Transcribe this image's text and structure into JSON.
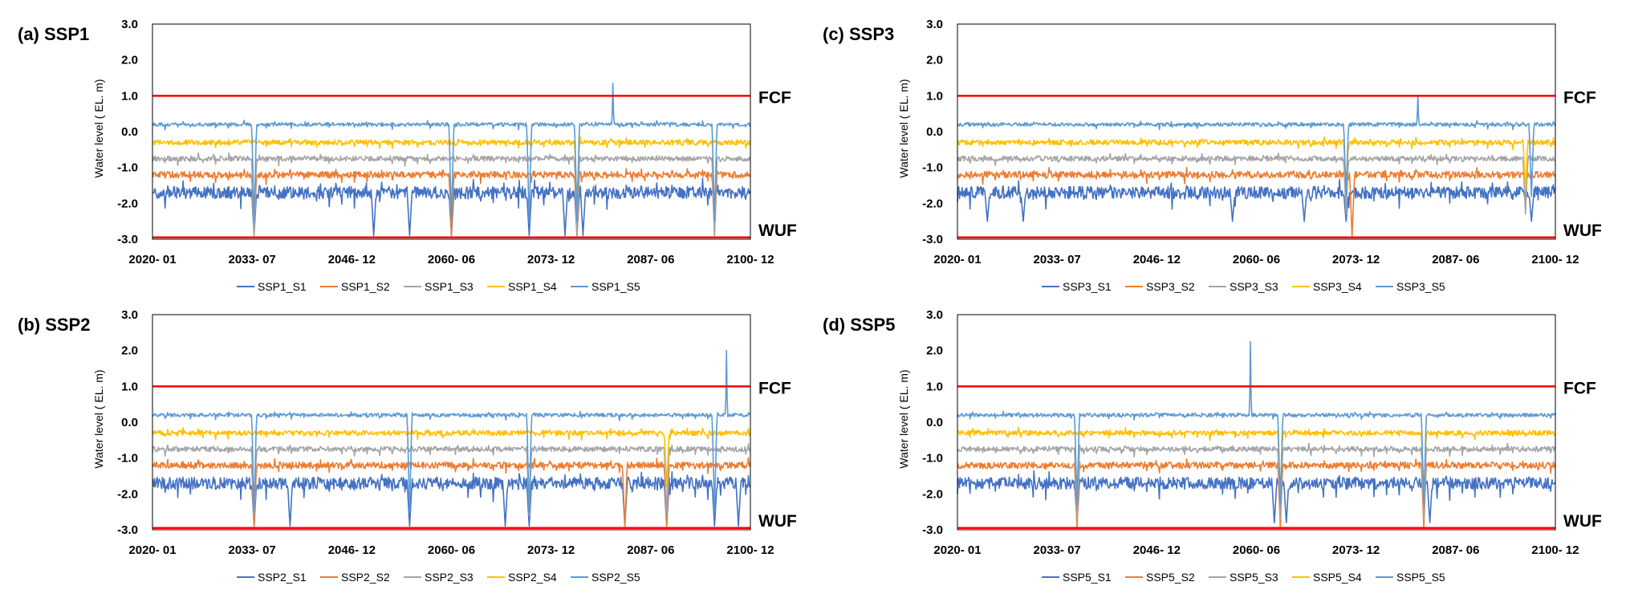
{
  "figure": {
    "ylabel": "Water level ( EL. m)",
    "ref_lines": [
      {
        "label": "FCF",
        "value": 1.0,
        "color": "#FF0000"
      },
      {
        "label": "WUF",
        "value": -2.95,
        "color": "#FF0000"
      }
    ],
    "ylim": [
      -3.0,
      3.0
    ],
    "yticks": [
      "3.0",
      "2.0",
      "1.0",
      "0.0",
      "-1.0",
      "-2.0",
      "-3.0"
    ],
    "xticks": [
      "2020- 01",
      "2033- 07",
      "2046- 12",
      "2060- 06",
      "2073- 12",
      "2087- 06",
      "2100- 12"
    ],
    "series_colors": [
      "#4472C4",
      "#ED7D31",
      "#A5A5A5",
      "#FFC000",
      "#5B9BD5"
    ]
  },
  "chart_data": [
    {
      "type": "line",
      "title": "(a) SSP1",
      "xlabel": "",
      "ylabel": "Water level ( EL. m)",
      "x_range": [
        "2020-01",
        "2100-12"
      ],
      "ylim": [
        -3.0,
        3.0
      ],
      "series": [
        {
          "name": "SSP1_S1",
          "baseline": -1.7,
          "spike_at": [
            0.17,
            0.37,
            0.43,
            0.5,
            0.63,
            0.69,
            0.71,
            0.72
          ],
          "spike_to": -2.9
        },
        {
          "name": "SSP1_S2",
          "baseline": -1.2,
          "spike_at": [
            0.17,
            0.5,
            0.71,
            0.94
          ],
          "spike_to": -2.9
        },
        {
          "name": "SSP1_S3",
          "baseline": -0.75,
          "spike_at": [
            0.17,
            0.71,
            0.94
          ],
          "spike_to": -2.9
        },
        {
          "name": "SSP1_S4",
          "baseline": -0.3,
          "spike_at": [
            0.71
          ],
          "spike_to": -2.0
        },
        {
          "name": "SSP1_S5",
          "baseline": 0.2,
          "spike_at": [
            0.17,
            0.5,
            0.63,
            0.71,
            0.94
          ],
          "spike_to": -2.5,
          "peak": {
            "at": 0.77,
            "value": 1.35
          }
        }
      ]
    },
    {
      "type": "line",
      "title": "(b) SSP2",
      "xlabel": "",
      "ylabel": "Water level ( EL. m)",
      "x_range": [
        "2020-01",
        "2100-12"
      ],
      "ylim": [
        -3.0,
        3.0
      ],
      "series": [
        {
          "name": "SSP2_S1",
          "baseline": -1.7,
          "spike_at": [
            0.17,
            0.23,
            0.43,
            0.59,
            0.63,
            0.79,
            0.86,
            0.94,
            0.98
          ],
          "spike_to": -2.9
        },
        {
          "name": "SSP2_S2",
          "baseline": -1.2,
          "spike_at": [
            0.17,
            0.79,
            0.86
          ],
          "spike_to": -2.9
        },
        {
          "name": "SSP2_S3",
          "baseline": -0.75,
          "spike_at": [
            0.17,
            0.63,
            0.86
          ],
          "spike_to": -2.6
        },
        {
          "name": "SSP2_S4",
          "baseline": -0.3,
          "spike_at": [
            0.86
          ],
          "spike_to": -1.8
        },
        {
          "name": "SSP2_S5",
          "baseline": 0.2,
          "spike_at": [
            0.17,
            0.43,
            0.63,
            0.94
          ],
          "spike_to": -2.5,
          "peak": {
            "at": 0.96,
            "value": 2.0
          }
        }
      ]
    },
    {
      "type": "line",
      "title": "(c) SSP3",
      "xlabel": "",
      "ylabel": "Water level ( EL. m)",
      "x_range": [
        "2020-01",
        "2100-12"
      ],
      "ylim": [
        -3.0,
        3.0
      ],
      "series": [
        {
          "name": "SSP3_S1",
          "baseline": -1.7,
          "spike_at": [
            0.05,
            0.11,
            0.46,
            0.58,
            0.65,
            0.96
          ],
          "spike_to": -2.5
        },
        {
          "name": "SSP3_S2",
          "baseline": -1.2,
          "spike_at": [
            0.66
          ],
          "spike_to": -2.95
        },
        {
          "name": "SSP3_S3",
          "baseline": -0.75,
          "spike_at": [
            0.65,
            0.95
          ],
          "spike_to": -2.3
        },
        {
          "name": "SSP3_S4",
          "baseline": -0.3,
          "spike_at": [
            0.65,
            0.95
          ],
          "spike_to": -1.6
        },
        {
          "name": "SSP3_S5",
          "baseline": 0.2,
          "spike_at": [
            0.65,
            0.96
          ],
          "spike_to": -1.8,
          "peak": {
            "at": 0.77,
            "value": 1.0
          }
        }
      ]
    },
    {
      "type": "line",
      "title": "(d) SSP5",
      "xlabel": "",
      "ylabel": "Water level ( EL. m)",
      "x_range": [
        "2020-01",
        "2100-12"
      ],
      "ylim": [
        -3.0,
        3.0
      ],
      "series": [
        {
          "name": "SSP5_S1",
          "baseline": -1.7,
          "spike_at": [
            0.2,
            0.53,
            0.55,
            0.79
          ],
          "spike_to": -2.8
        },
        {
          "name": "SSP5_S2",
          "baseline": -1.2,
          "spike_at": [
            0.2,
            0.54,
            0.78
          ],
          "spike_to": -2.95
        },
        {
          "name": "SSP5_S3",
          "baseline": -0.75,
          "spike_at": [
            0.2,
            0.54,
            0.78
          ],
          "spike_to": -2.7
        },
        {
          "name": "SSP5_S4",
          "baseline": -0.3,
          "spike_at": [
            0.54,
            0.78
          ],
          "spike_to": -2.0
        },
        {
          "name": "SSP5_S5",
          "baseline": 0.2,
          "spike_at": [
            0.2,
            0.54,
            0.78
          ],
          "spike_to": -2.3,
          "peak": {
            "at": 0.49,
            "value": 2.25
          }
        }
      ]
    }
  ]
}
